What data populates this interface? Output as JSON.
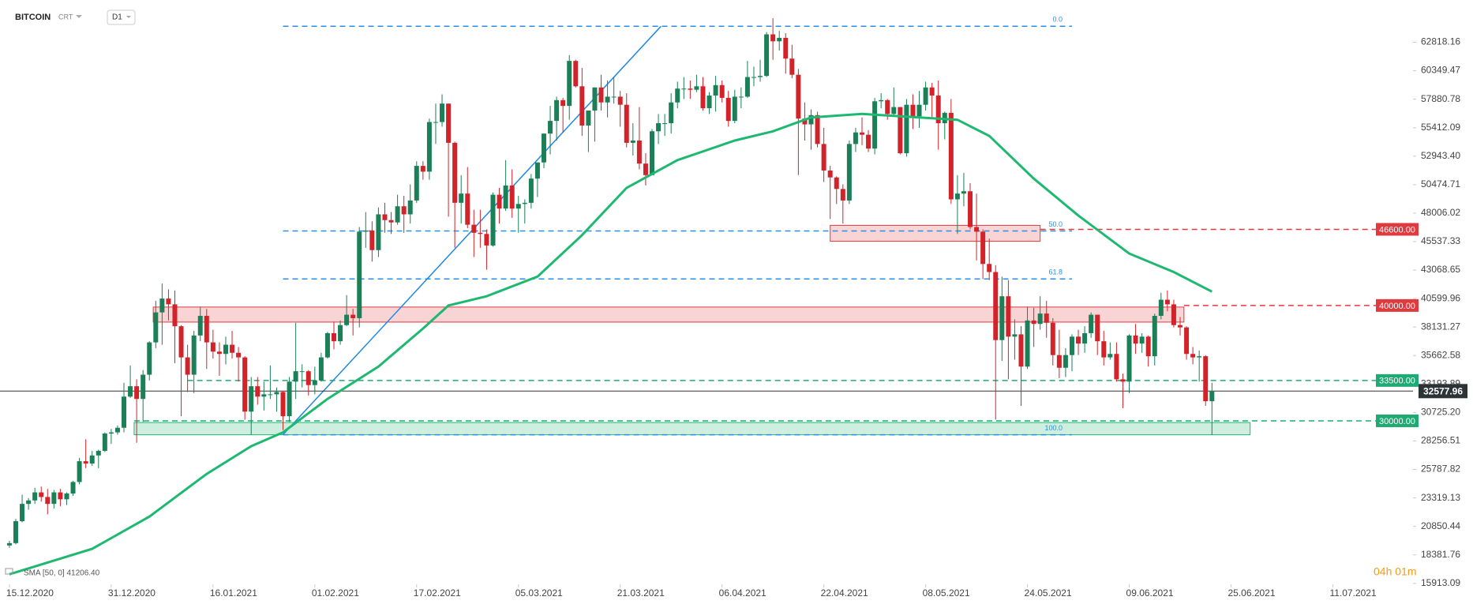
{
  "header": {
    "symbol": "BITCOIN",
    "market": "CRT",
    "interval": "D1"
  },
  "timer": "04h 01m",
  "chart_data": {
    "type": "candlestick",
    "up_color": "#1b7f57",
    "down_color": "#d3232a",
    "xlim": [
      -1.48,
      220.6
    ],
    "xticks": [
      {
        "value": 0,
        "label": "15.12.2020"
      },
      {
        "value": 16,
        "label": "31.12.2020"
      },
      {
        "value": 32,
        "label": "16.01.2021"
      },
      {
        "value": 48,
        "label": "01.02.2021"
      },
      {
        "value": 64,
        "label": "17.02.2021"
      },
      {
        "value": 80,
        "label": "05.03.2021"
      },
      {
        "value": 96,
        "label": "21.03.2021"
      },
      {
        "value": 112,
        "label": "06.04.2021"
      },
      {
        "value": 128,
        "label": "22.04.2021"
      },
      {
        "value": 144,
        "label": "08.05.2021"
      },
      {
        "value": 160,
        "label": "24.05.2021"
      },
      {
        "value": 176,
        "label": "09.06.2021"
      },
      {
        "value": 192,
        "label": "25.06.2021"
      },
      {
        "value": 208,
        "label": "11.07.2021"
      }
    ],
    "ylim": [
      15830,
      66480
    ],
    "yticks": [
      15913.09,
      18381.76,
      20850.44,
      23319.13,
      25787.82,
      28256.51,
      {
        "value": 30725.2,
        "label": "30725.20"
      },
      33193.89,
      35662.58,
      38131.27,
      40599.96,
      43068.65,
      45537.33,
      48006.02,
      50474.71,
      {
        "value": 52943.4,
        "label": "52943.40"
      },
      55412.09,
      57880.78,
      60349.47,
      62818.16
    ],
    "candles": [
      [
        19200,
        19600,
        19000,
        19400
      ],
      [
        19400,
        21500,
        19300,
        21300
      ],
      [
        21300,
        23600,
        21200,
        22800
      ],
      [
        22800,
        23300,
        22300,
        23100
      ],
      [
        23100,
        24200,
        22800,
        23800
      ],
      [
        23800,
        24300,
        23000,
        23400
      ],
      [
        23400,
        24100,
        21900,
        22800
      ],
      [
        22800,
        24000,
        22400,
        23800
      ],
      [
        23800,
        24100,
        22600,
        23200
      ],
      [
        23200,
        23800,
        22700,
        23700
      ],
      [
        23700,
        24800,
        23500,
        24700
      ],
      [
        24700,
        26800,
        24500,
        26500
      ],
      [
        26500,
        28400,
        25900,
        26300
      ],
      [
        26300,
        27400,
        26100,
        27000
      ],
      [
        27000,
        27500,
        25900,
        27400
      ],
      [
        27400,
        29000,
        27300,
        28900
      ],
      [
        28900,
        29300,
        28000,
        29000
      ],
      [
        29000,
        29600,
        28800,
        29400
      ],
      [
        29400,
        33300,
        29000,
        32100
      ],
      [
        32100,
        34800,
        32000,
        33000
      ],
      [
        33000,
        33600,
        28100,
        31900
      ],
      [
        31900,
        34400,
        29900,
        34000
      ],
      [
        34000,
        36900,
        33500,
        36800
      ],
      [
        36800,
        40400,
        36300,
        39400
      ],
      [
        39400,
        41900,
        36600,
        40600
      ],
      [
        40600,
        41400,
        38700,
        40100
      ],
      [
        40100,
        41300,
        35000,
        38200
      ],
      [
        38200,
        38300,
        30400,
        35500
      ],
      [
        35500,
        36600,
        32500,
        34000
      ],
      [
        34000,
        37800,
        32400,
        37400
      ],
      [
        37400,
        39900,
        36900,
        39100
      ],
      [
        39100,
        39700,
        34500,
        36800
      ],
      [
        36800,
        37900,
        35400,
        36000
      ],
      [
        36000,
        36800,
        33900,
        35800
      ],
      [
        35800,
        37300,
        34900,
        36600
      ],
      [
        36600,
        37800,
        35400,
        35900
      ],
      [
        35900,
        36400,
        33400,
        35500
      ],
      [
        35500,
        35600,
        30100,
        30800
      ],
      [
        30800,
        33800,
        28800,
        33000
      ],
      [
        33000,
        33800,
        31400,
        32100
      ],
      [
        32100,
        33400,
        30900,
        32300
      ],
      [
        32300,
        34800,
        31900,
        32300
      ],
      [
        32300,
        32900,
        30800,
        32500
      ],
      [
        32500,
        32600,
        29200,
        30400
      ],
      [
        30400,
        33800,
        29900,
        33400
      ],
      [
        33400,
        38500,
        31900,
        34300
      ],
      [
        34300,
        34900,
        32900,
        34300
      ],
      [
        34300,
        34400,
        32200,
        33100
      ],
      [
        33100,
        34700,
        32300,
        33500
      ],
      [
        33500,
        35900,
        33400,
        35500
      ],
      [
        35500,
        37700,
        35400,
        37600
      ],
      [
        37600,
        38600,
        36200,
        36900
      ],
      [
        36900,
        38700,
        36600,
        38300
      ],
      [
        38300,
        40900,
        38200,
        39200
      ],
      [
        39200,
        39700,
        37400,
        38900
      ],
      [
        38900,
        46800,
        38100,
        46400
      ],
      [
        46400,
        48100,
        45000,
        46500
      ],
      [
        46500,
        47300,
        43800,
        44800
      ],
      [
        44800,
        48500,
        44200,
        47900
      ],
      [
        47900,
        48900,
        46300,
        47400
      ],
      [
        47400,
        48100,
        46200,
        47200
      ],
      [
        47200,
        49600,
        47000,
        48600
      ],
      [
        48600,
        49500,
        46300,
        47900
      ],
      [
        47900,
        50500,
        47100,
        49100
      ],
      [
        49100,
        52500,
        48900,
        52100
      ],
      [
        52100,
        52500,
        50900,
        51600
      ],
      [
        51600,
        56200,
        50900,
        55900
      ],
      [
        55900,
        57500,
        54000,
        55900
      ],
      [
        55900,
        58300,
        55500,
        57500
      ],
      [
        57500,
        57500,
        47700,
        54100
      ],
      [
        54100,
        54200,
        45000,
        48900
      ],
      [
        48900,
        51300,
        47100,
        49700
      ],
      [
        49700,
        52000,
        46700,
        47000
      ],
      [
        47000,
        48300,
        44200,
        46300
      ],
      [
        46300,
        48300,
        45000,
        46200
      ],
      [
        46200,
        46600,
        43100,
        45200
      ],
      [
        45200,
        49800,
        45100,
        49600
      ],
      [
        49600,
        50200,
        47100,
        48400
      ],
      [
        48400,
        52600,
        48200,
        50400
      ],
      [
        50400,
        51800,
        47600,
        48400
      ],
      [
        48400,
        49500,
        46300,
        48800
      ],
      [
        48800,
        49200,
        47100,
        48900
      ],
      [
        48900,
        51400,
        48400,
        51000
      ],
      [
        51000,
        52400,
        49400,
        52400
      ],
      [
        52400,
        54900,
        51900,
        54900
      ],
      [
        54900,
        57300,
        53100,
        56000
      ],
      [
        56000,
        58100,
        54300,
        57800
      ],
      [
        57800,
        58000,
        55000,
        57300
      ],
      [
        57300,
        61700,
        56100,
        61200
      ],
      [
        61200,
        61300,
        58900,
        59000
      ],
      [
        59000,
        60600,
        54700,
        55600
      ],
      [
        55600,
        56900,
        53300,
        56900
      ],
      [
        56900,
        58900,
        54200,
        58900
      ],
      [
        58900,
        60000,
        56900,
        57600
      ],
      [
        57600,
        59500,
        56300,
        58100
      ],
      [
        58100,
        59800,
        57500,
        58100
      ],
      [
        58100,
        58600,
        55500,
        57400
      ],
      [
        57400,
        58400,
        53700,
        54100
      ],
      [
        54100,
        55800,
        53000,
        54300
      ],
      [
        54300,
        57200,
        51800,
        52300
      ],
      [
        52300,
        53200,
        50400,
        51300
      ],
      [
        51300,
        55300,
        51300,
        55100
      ],
      [
        55100,
        56600,
        54000,
        55800
      ],
      [
        55800,
        56600,
        54700,
        55800
      ],
      [
        55800,
        58400,
        54900,
        57600
      ],
      [
        57600,
        59400,
        57100,
        58800
      ],
      [
        58800,
        59800,
        57900,
        58800
      ],
      [
        58800,
        59500,
        57900,
        58700
      ],
      [
        58700,
        60000,
        58500,
        59000
      ],
      [
        59000,
        59800,
        56900,
        57100
      ],
      [
        57100,
        58500,
        56600,
        58200
      ],
      [
        58200,
        59900,
        56800,
        59100
      ],
      [
        59100,
        59500,
        57600,
        58000
      ],
      [
        58000,
        58600,
        55500,
        56000
      ],
      [
        56000,
        58700,
        55800,
        58100
      ],
      [
        58100,
        58900,
        57100,
        58100
      ],
      [
        58100,
        61200,
        58000,
        59800
      ],
      [
        59800,
        60700,
        59000,
        59800
      ],
      [
        59800,
        61300,
        59400,
        59900
      ],
      [
        59900,
        63700,
        59800,
        63500
      ],
      [
        63500,
        64900,
        61300,
        62900
      ],
      [
        62900,
        63800,
        62100,
        63200
      ],
      [
        63200,
        63600,
        60100,
        61400
      ],
      [
        61400,
        62600,
        59700,
        60000
      ],
      [
        60000,
        60500,
        51300,
        56200
      ],
      [
        56200,
        57600,
        54300,
        55700
      ],
      [
        55700,
        57000,
        53500,
        56500
      ],
      [
        56500,
        56800,
        53700,
        54000
      ],
      [
        54000,
        55400,
        50700,
        51700
      ],
      [
        51700,
        52100,
        47500,
        51100
      ],
      [
        51100,
        51200,
        48800,
        50100
      ],
      [
        50100,
        50500,
        47100,
        49100
      ],
      [
        49100,
        54300,
        48800,
        54000
      ],
      [
        54000,
        55400,
        53300,
        55000
      ],
      [
        55000,
        56300,
        53900,
        54800
      ],
      [
        54800,
        55200,
        53300,
        53600
      ],
      [
        53600,
        58000,
        53100,
        57700
      ],
      [
        57700,
        58400,
        57100,
        57800
      ],
      [
        57800,
        57900,
        56100,
        56600
      ],
      [
        56600,
        58900,
        56500,
        57200
      ],
      [
        57200,
        57200,
        53100,
        53200
      ],
      [
        53200,
        57900,
        52900,
        57400
      ],
      [
        57400,
        58300,
        55300,
        56400
      ],
      [
        56400,
        58600,
        55400,
        57400
      ],
      [
        57400,
        59400,
        56900,
        58900
      ],
      [
        58900,
        59300,
        56300,
        58200
      ],
      [
        58200,
        59500,
        53500,
        55800
      ],
      [
        55800,
        56800,
        54400,
        56700
      ],
      [
        56700,
        57900,
        48800,
        49200
      ],
      [
        49200,
        51300,
        46200,
        49700
      ],
      [
        49700,
        51500,
        48600,
        49900
      ],
      [
        49900,
        50600,
        46600,
        46800
      ],
      [
        46800,
        49700,
        43900,
        46400
      ],
      [
        46400,
        46600,
        42300,
        43600
      ],
      [
        43600,
        45800,
        42200,
        42900
      ],
      [
        42900,
        43500,
        30100,
        37000
      ],
      [
        37000,
        42500,
        35200,
        40800
      ],
      [
        40800,
        42200,
        33600,
        37300
      ],
      [
        37300,
        38800,
        35300,
        37500
      ],
      [
        37500,
        38200,
        31300,
        34700
      ],
      [
        34700,
        39900,
        34500,
        38700
      ],
      [
        38700,
        39800,
        36400,
        38400
      ],
      [
        38400,
        40800,
        37900,
        39300
      ],
      [
        39300,
        40400,
        37200,
        38500
      ],
      [
        38500,
        38900,
        34800,
        35700
      ],
      [
        35700,
        37900,
        33700,
        34600
      ],
      [
        34600,
        36300,
        33800,
        35700
      ],
      [
        35700,
        37500,
        34300,
        37300
      ],
      [
        37300,
        37900,
        35700,
        36700
      ],
      [
        36700,
        38200,
        35900,
        37600
      ],
      [
        37600,
        39400,
        37200,
        39200
      ],
      [
        39200,
        39200,
        35700,
        36900
      ],
      [
        36900,
        37800,
        34800,
        35500
      ],
      [
        35500,
        36800,
        35300,
        35800
      ],
      [
        35800,
        36800,
        33400,
        33600
      ],
      [
        33600,
        34100,
        31100,
        33400
      ],
      [
        33400,
        37500,
        32400,
        37400
      ],
      [
        37400,
        38400,
        35800,
        36700
      ],
      [
        36700,
        37600,
        35900,
        37300
      ],
      [
        37300,
        37400,
        34700,
        35600
      ],
      [
        35600,
        39300,
        34800,
        39100
      ],
      [
        39100,
        41100,
        38800,
        40500
      ],
      [
        40500,
        41300,
        39500,
        40100
      ],
      [
        40100,
        40500,
        38100,
        38300
      ],
      [
        38300,
        39000,
        37400,
        38100
      ],
      [
        38100,
        38200,
        35300,
        35800
      ],
      [
        35800,
        36400,
        34900,
        35500
      ],
      [
        35500,
        36100,
        33400,
        35600
      ],
      [
        35600,
        35700,
        31300,
        31700
      ],
      [
        31700,
        33300,
        28800,
        32600
      ]
    ],
    "sma": {
      "label": "SMA [50, 0] 41206.40",
      "color": "#1fb870",
      "x": [
        0,
        13,
        22,
        31,
        38,
        43,
        50,
        58,
        65,
        69,
        75,
        83,
        90,
        97,
        105,
        114,
        120,
        126,
        134,
        143,
        149,
        154,
        161,
        168,
        176,
        183,
        189
      ],
      "values": [
        16700,
        18900,
        21700,
        25400,
        27800,
        29000,
        31900,
        34700,
        38000,
        40000,
        40800,
        42500,
        46100,
        50200,
        52600,
        54300,
        55100,
        56300,
        56600,
        56300,
        56100,
        54700,
        51000,
        47800,
        44500,
        42900,
        41200
      ]
    },
    "zones": [
      {
        "y": [
          38560,
          39864
        ],
        "x": [
          22.6,
          184.6
        ],
        "color": "#e0393e"
      },
      {
        "y": [
          45562,
          46945
        ],
        "x": [
          129,
          162
        ],
        "color": "#e0393e"
      },
      {
        "y": [
          28793,
          29851
        ],
        "x": [
          19.6,
          195
        ],
        "color": "#1fb870"
      }
    ],
    "fibonacci": {
      "color": "#2a8fe8",
      "x": [
        43,
        167
      ],
      "levels": [
        {
          "value": 64200,
          "label": "0.0"
        },
        {
          "value": 46457,
          "label": "50.0"
        },
        {
          "value": 42305,
          "label": "61.8"
        },
        {
          "value": 28793,
          "label": "100.0"
        }
      ]
    },
    "trendline": {
      "color": "#1e88e5",
      "x": [
        43,
        102.4
      ],
      "y": [
        28800,
        64200
      ]
    },
    "levels": [
      {
        "value": 46600,
        "label": "46600.00",
        "color": "#e0393e",
        "x": 162
      },
      {
        "value": 40000,
        "label": "40000.00",
        "color": "#e0393e",
        "x": 184.6
      },
      {
        "value": 33500,
        "label": "33500.00",
        "color": "#1faa74",
        "x": 28
      },
      {
        "value": 30000,
        "label": "30000.00",
        "color": "#1faa74",
        "x": 19.6
      }
    ],
    "last_price": 32577.96
  }
}
